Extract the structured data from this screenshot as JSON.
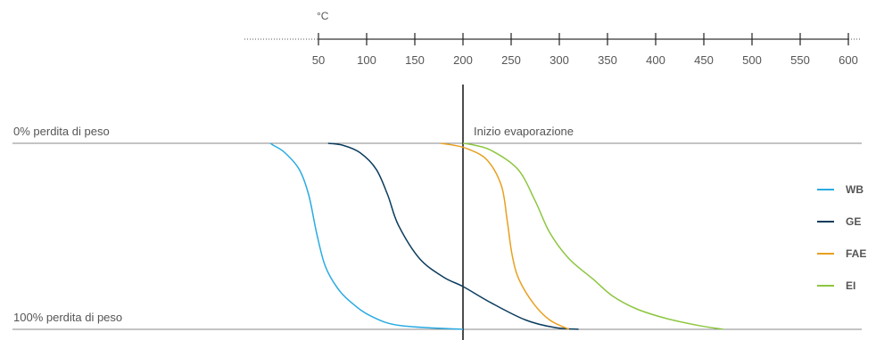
{
  "chart_data": {
    "type": "line",
    "x_axis": {
      "unit": "°C",
      "ticks": [
        50,
        100,
        150,
        200,
        250,
        300,
        350,
        400,
        450,
        500,
        550,
        600
      ],
      "range": [
        0,
        620
      ],
      "position": "top"
    },
    "y_axis": {
      "top_label": "0% perdita di peso",
      "bottom_label": "100% perdita di peso",
      "range": [
        0,
        100
      ],
      "unit": "% perdita di peso"
    },
    "annotation": {
      "label": "Inizio evaporazione",
      "x": 200
    },
    "legend_position": "right",
    "series": [
      {
        "name": "WB",
        "color": "#29abe2",
        "points": [
          [
            0,
            0
          ],
          [
            3,
            1
          ],
          [
            15,
            5
          ],
          [
            30,
            14
          ],
          [
            40,
            28
          ],
          [
            48,
            48
          ],
          [
            57,
            66
          ],
          [
            70,
            78
          ],
          [
            85,
            86
          ],
          [
            105,
            93
          ],
          [
            135,
            98
          ],
          [
            200,
            100
          ]
        ]
      },
      {
        "name": "GE",
        "color": "#0b3c5d",
        "points": [
          [
            60,
            0
          ],
          [
            75,
            1
          ],
          [
            93,
            5
          ],
          [
            110,
            14
          ],
          [
            122,
            28
          ],
          [
            133,
            44
          ],
          [
            155,
            62
          ],
          [
            180,
            72
          ],
          [
            200,
            77
          ],
          [
            230,
            86
          ],
          [
            265,
            95
          ],
          [
            295,
            99
          ],
          [
            320,
            100
          ]
        ]
      },
      {
        "name": "FAE",
        "color": "#e8a020",
        "points": [
          [
            177,
            0
          ],
          [
            190,
            1
          ],
          [
            205,
            3
          ],
          [
            225,
            9
          ],
          [
            240,
            23
          ],
          [
            246,
            42
          ],
          [
            251,
            60
          ],
          [
            258,
            73
          ],
          [
            273,
            86
          ],
          [
            290,
            95
          ],
          [
            310,
            100
          ]
        ]
      },
      {
        "name": "EI",
        "color": "#8cc63f",
        "points": [
          [
            200,
            0
          ],
          [
            212,
            1
          ],
          [
            230,
            4
          ],
          [
            257,
            14
          ],
          [
            275,
            31
          ],
          [
            290,
            48
          ],
          [
            310,
            62
          ],
          [
            335,
            73
          ],
          [
            355,
            82
          ],
          [
            380,
            89
          ],
          [
            410,
            94
          ],
          [
            445,
            98
          ],
          [
            470,
            100
          ]
        ]
      }
    ]
  }
}
